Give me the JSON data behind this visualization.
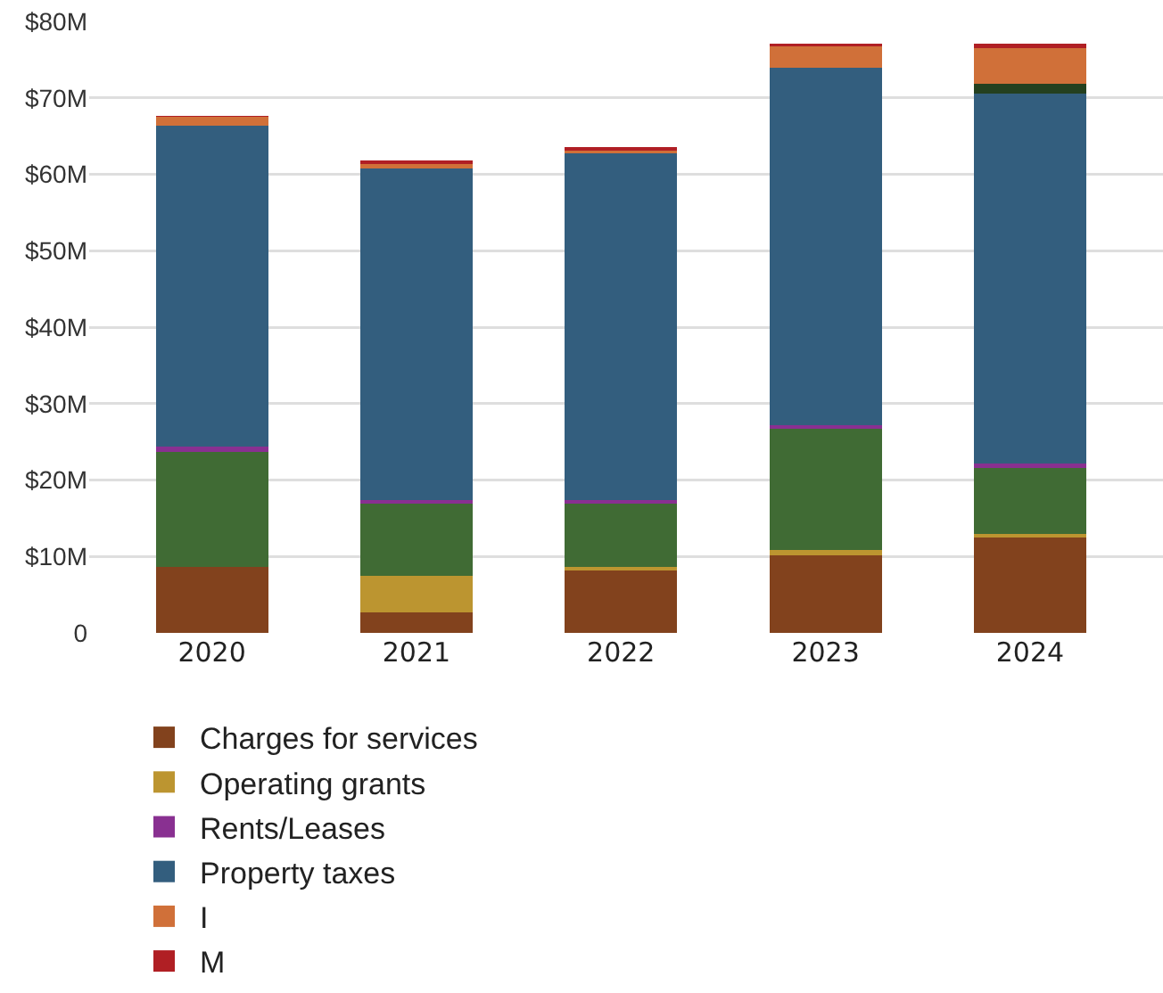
{
  "chart_data": {
    "type": "bar",
    "stacked": true,
    "categories": [
      "2020",
      "2021",
      "2022",
      "2023",
      "2024"
    ],
    "series": [
      {
        "name": "Charges for services",
        "color": "#82421d",
        "values": [
          8.6,
          2.7,
          8.2,
          10.2,
          12.5
        ]
      },
      {
        "name": "Operating grants",
        "color": "#bc9530",
        "values": [
          0,
          4.8,
          0.4,
          0.6,
          0.4
        ]
      },
      {
        "color": "#406b34",
        "values": [
          15.1,
          9.4,
          8.3,
          15.9,
          8.7
        ]
      },
      {
        "name": "Rents/Leases",
        "color": "#893091",
        "values": [
          0.7,
          0.5,
          0.5,
          0.5,
          0.6
        ]
      },
      {
        "name": "Property taxes",
        "color": "#335e7e",
        "values": [
          41.9,
          43.4,
          45.3,
          46.7,
          48.4
        ]
      },
      {
        "color": "#24401f",
        "values": [
          0,
          0,
          0,
          0,
          1.2
        ]
      },
      {
        "name": "I",
        "color": "#d07039",
        "values": [
          1.2,
          0.6,
          0.4,
          2.8,
          4.7
        ]
      },
      {
        "name": "M",
        "color": "#b01f24",
        "values": [
          0.1,
          0.4,
          0.4,
          0.4,
          0.6
        ]
      }
    ],
    "ylim": [
      0,
      80
    ],
    "yticks": [
      {
        "value": 0,
        "label": "0"
      },
      {
        "value": 10,
        "label": "$10M"
      },
      {
        "value": 20,
        "label": "$20M"
      },
      {
        "value": 30,
        "label": "$30M"
      },
      {
        "value": 40,
        "label": "$40M"
      },
      {
        "value": 50,
        "label": "$50M"
      },
      {
        "value": 60,
        "label": "$60M"
      },
      {
        "value": 70,
        "label": "$70M"
      },
      {
        "value": 80,
        "label": "$80M"
      }
    ],
    "grid": "y",
    "legend": "bottom"
  }
}
